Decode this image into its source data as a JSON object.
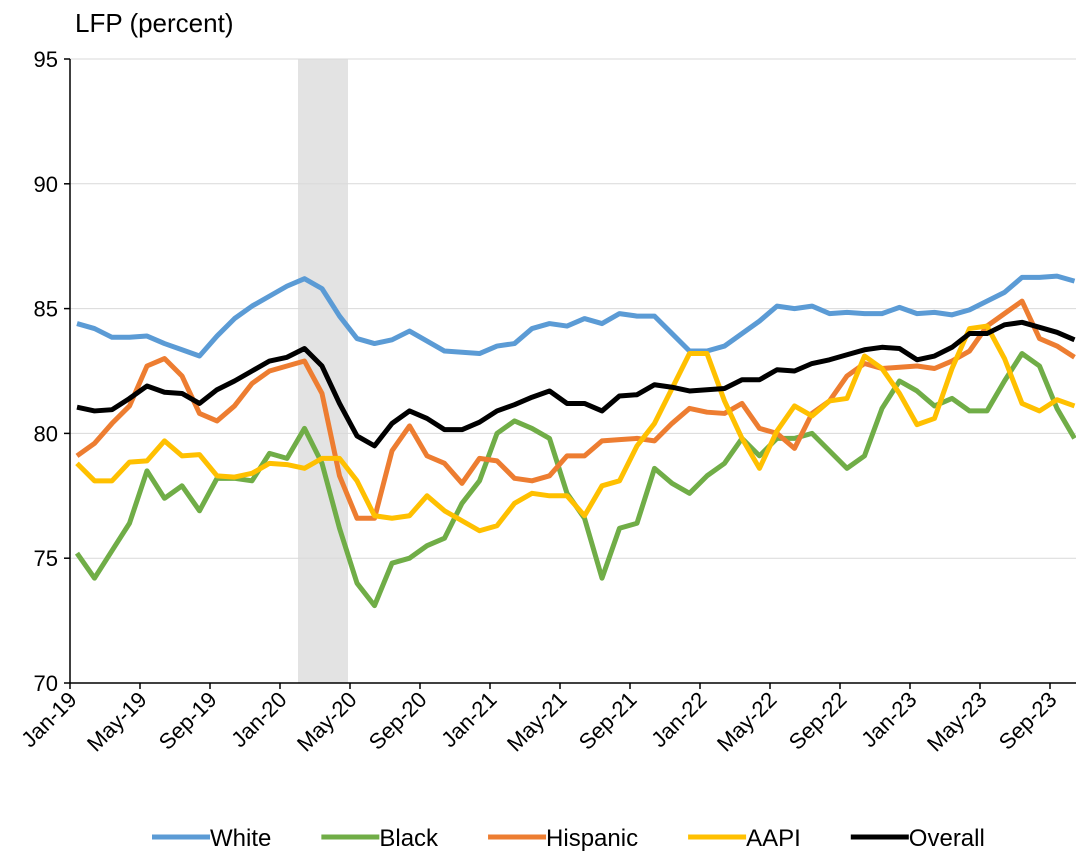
{
  "chart_data": {
    "type": "line",
    "y_label": "LFP (percent)",
    "categories": [
      "Jan-19",
      null,
      null,
      null,
      "May-19",
      null,
      null,
      null,
      "Sep-19",
      null,
      null,
      null,
      "Jan-20",
      null,
      null,
      null,
      "May-20",
      null,
      null,
      null,
      "Sep-20",
      null,
      null,
      null,
      "Jan-21",
      null,
      null,
      null,
      "May-21",
      null,
      null,
      null,
      "Sep-21",
      null,
      null,
      null,
      "Jan-22",
      null,
      null,
      null,
      "May-22",
      null,
      null,
      null,
      "Sep-22",
      null,
      null,
      null,
      "Jan-23",
      null,
      null,
      null,
      "May-23",
      null,
      null,
      null,
      "Sep-23",
      null
    ],
    "series": [
      {
        "name": "White",
        "color": "#5b9bd5",
        "values": [
          84.4,
          84.2,
          83.85,
          83.85,
          83.9,
          83.6,
          83.35,
          83.1,
          83.9,
          84.6,
          85.1,
          85.5,
          85.9,
          86.2,
          85.8,
          84.7,
          83.8,
          83.6,
          83.75,
          84.1,
          83.7,
          83.3,
          83.25,
          83.2,
          83.5,
          83.6,
          84.2,
          84.4,
          84.3,
          84.6,
          84.4,
          84.8,
          84.7,
          84.7,
          84.0,
          83.3,
          83.3,
          83.5,
          84.0,
          84.5,
          85.1,
          85.0,
          85.1,
          84.8,
          84.85,
          84.8,
          84.8,
          85.05,
          84.8,
          84.85,
          84.75,
          84.95,
          85.3,
          85.65,
          86.25,
          86.25,
          86.3,
          86.1
        ]
      },
      {
        "name": "Black",
        "color": "#70ad47",
        "values": [
          75.2,
          74.2,
          75.3,
          76.4,
          78.5,
          77.4,
          77.9,
          76.9,
          78.2,
          78.2,
          78.1,
          79.2,
          79.0,
          80.2,
          78.8,
          76.2,
          74.0,
          73.1,
          74.8,
          75.0,
          75.5,
          75.8,
          77.2,
          78.1,
          80.0,
          80.5,
          80.2,
          79.8,
          77.6,
          76.6,
          74.2,
          76.2,
          76.4,
          78.6,
          78.0,
          77.6,
          78.3,
          78.8,
          79.8,
          79.1,
          79.8,
          79.8,
          80.0,
          79.3,
          78.6,
          79.1,
          81.0,
          82.1,
          81.7,
          81.1,
          81.4,
          80.9,
          80.9,
          82.1,
          83.2,
          82.7,
          81.0,
          79.8
        ]
      },
      {
        "name": "Hispanic",
        "color": "#ed7d31",
        "values": [
          79.1,
          79.6,
          80.4,
          81.1,
          82.7,
          83.0,
          82.3,
          80.8,
          80.5,
          81.1,
          82.0,
          82.5,
          82.7,
          82.9,
          81.6,
          78.3,
          76.6,
          76.6,
          79.3,
          80.3,
          79.1,
          78.8,
          78.0,
          79.0,
          78.9,
          78.2,
          78.1,
          78.3,
          79.1,
          79.1,
          79.7,
          79.75,
          79.8,
          79.7,
          80.4,
          81.0,
          80.85,
          80.8,
          81.2,
          80.2,
          80.0,
          79.4,
          80.8,
          81.3,
          82.3,
          82.8,
          82.6,
          82.65,
          82.7,
          82.6,
          82.9,
          83.3,
          84.3,
          84.8,
          85.3,
          83.8,
          83.5,
          83.05
        ]
      },
      {
        "name": "AAPI",
        "color": "#ffc000",
        "values": [
          78.8,
          78.1,
          78.1,
          78.85,
          78.9,
          79.7,
          79.1,
          79.15,
          78.3,
          78.25,
          78.4,
          78.8,
          78.75,
          78.6,
          79.0,
          79.0,
          78.1,
          76.7,
          76.6,
          76.7,
          77.5,
          76.9,
          76.5,
          76.1,
          76.3,
          77.2,
          77.6,
          77.5,
          77.5,
          76.7,
          77.9,
          78.1,
          79.5,
          80.4,
          81.8,
          83.2,
          83.2,
          81.3,
          79.8,
          78.6,
          80.1,
          81.1,
          80.7,
          81.3,
          81.4,
          83.1,
          82.6,
          81.6,
          80.35,
          80.6,
          82.6,
          84.2,
          84.3,
          83.0,
          81.2,
          80.9,
          81.35,
          81.1
        ]
      },
      {
        "name": "Overall",
        "color": "#000000",
        "values": [
          81.05,
          80.9,
          80.95,
          81.4,
          81.9,
          81.65,
          81.6,
          81.2,
          81.75,
          82.1,
          82.5,
          82.9,
          83.05,
          83.4,
          82.7,
          81.2,
          79.9,
          79.5,
          80.4,
          80.9,
          80.6,
          80.15,
          80.15,
          80.45,
          80.9,
          81.15,
          81.45,
          81.7,
          81.2,
          81.2,
          80.9,
          81.5,
          81.55,
          81.95,
          81.85,
          81.7,
          81.75,
          81.8,
          82.15,
          82.15,
          82.55,
          82.5,
          82.8,
          82.95,
          83.15,
          83.35,
          83.45,
          83.4,
          82.95,
          83.1,
          83.45,
          84.0,
          84.0,
          84.35,
          84.45,
          84.25,
          84.05,
          83.75
        ]
      }
    ],
    "ylim": [
      70,
      95
    ],
    "yticks": [
      70,
      75,
      80,
      85,
      90,
      95
    ],
    "grid": true,
    "legend": "bottom"
  }
}
